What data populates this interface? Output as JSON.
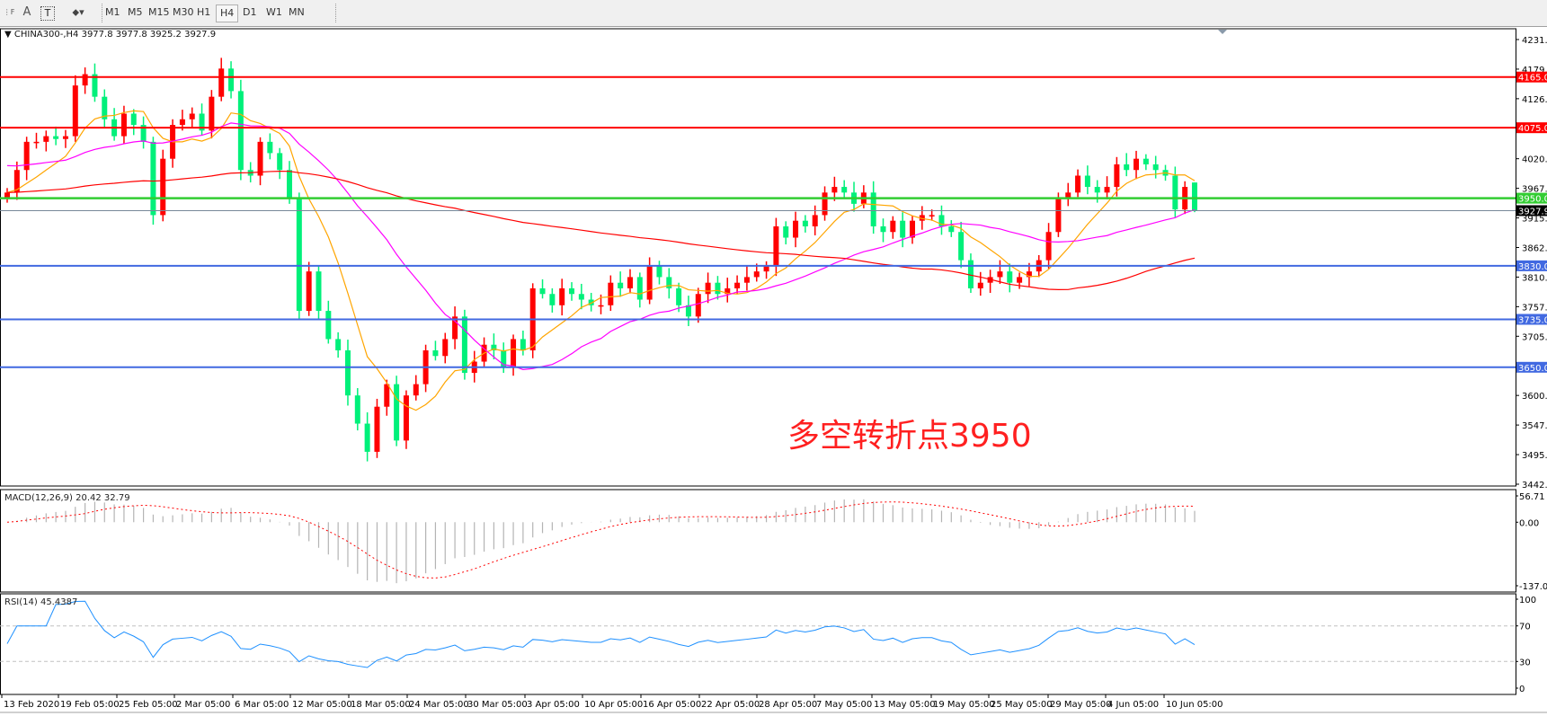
{
  "toolbar": {
    "tools": [
      {
        "name": "properties-icon",
        "glyph": "⋮F"
      },
      {
        "name": "text-icon",
        "glyph": "A"
      },
      {
        "name": "text-label-icon",
        "glyph": "T"
      },
      {
        "name": "shapes-icon",
        "glyph": "⬥▾"
      }
    ],
    "timeframes": [
      "M1",
      "M5",
      "M15",
      "M30",
      "H1",
      "H4",
      "D1",
      "W1",
      "MN"
    ],
    "active_timeframe": "H4"
  },
  "chart": {
    "title": "CHINA300-,H4  3977.8 3977.8 3925.2 3927.9",
    "annotation": "多空转折点3950",
    "colors": {
      "bull": "#ff0000",
      "bear": "#00f07a",
      "ma_fast": "#ffa500",
      "ma_mid": "#ff00ff",
      "ma_slow": "#ff0000",
      "resistance": "#ff0000",
      "pivot": "#32cd32",
      "support": "#4169e1",
      "current": "#778899",
      "rsi": "#1e90ff",
      "macd_hist": "#b4b4b4",
      "macd_signal": "#ff0000"
    }
  },
  "chart_data": [
    {
      "type": "candlestick",
      "symbol": "CHINA300-",
      "timeframe": "H4",
      "ohlc_last": {
        "open": 3977.8,
        "high": 3977.8,
        "low": 3925.2,
        "close": 3927.9
      },
      "closes": [
        3960,
        4000,
        4050,
        4050,
        4060,
        4055,
        4060,
        4150,
        4170,
        4130,
        4090,
        4060,
        4100,
        4080,
        4050,
        3920,
        4020,
        4080,
        4090,
        4100,
        4070,
        4130,
        4180,
        4140,
        4000,
        3990,
        4050,
        4030,
        4000,
        3950,
        3750,
        3820,
        3750,
        3700,
        3680,
        3600,
        3550,
        3500,
        3580,
        3620,
        3520,
        3600,
        3620,
        3680,
        3670,
        3700,
        3740,
        3640,
        3660,
        3690,
        3680,
        3650,
        3700,
        3680,
        3790,
        3780,
        3760,
        3790,
        3780,
        3770,
        3760,
        3760,
        3800,
        3790,
        3810,
        3770,
        3830,
        3810,
        3790,
        3760,
        3740,
        3780,
        3800,
        3780,
        3790,
        3800,
        3810,
        3820,
        3830,
        3900,
        3880,
        3910,
        3900,
        3920,
        3960,
        3970,
        3960,
        3940,
        3960,
        3900,
        3890,
        3910,
        3880,
        3910,
        3920,
        3920,
        3900,
        3890,
        3840,
        3790,
        3800,
        3810,
        3820,
        3800,
        3810,
        3820,
        3840,
        3890,
        3950,
        3960,
        3990,
        3970,
        3960,
        3970,
        4010,
        4000,
        4020,
        4010,
        4000,
        3990,
        3930,
        3970,
        3927.9
      ],
      "y_ticks": [
        "4231.5",
        "4179.0",
        "4126.5",
        "4020.0",
        "3967.5",
        "3915.0",
        "3862.5",
        "3810.0",
        "3757.5",
        "3705.0",
        "3600.0",
        "3547.5",
        "3495.0",
        "3442.5"
      ],
      "ylim": [
        3442.5,
        4231.5
      ],
      "levels": [
        {
          "value": 4165.0,
          "label": "4165.0",
          "kind": "resistance"
        },
        {
          "value": 4075.0,
          "label": "4075.0",
          "kind": "resistance"
        },
        {
          "value": 3950.0,
          "label": "3950.0",
          "kind": "pivot"
        },
        {
          "value": 3927.9,
          "label": "3927.9",
          "kind": "current"
        },
        {
          "value": 3830.0,
          "label": "3830.0",
          "kind": "support"
        },
        {
          "value": 3735.0,
          "label": "3735.0",
          "kind": "support"
        },
        {
          "value": 3650.0,
          "label": "3650.0",
          "kind": "support"
        }
      ],
      "x_labels": [
        "13 Feb 2020",
        "19 Feb 05:00",
        "25 Feb 05:00",
        "2 Mar 05:00",
        "6 Mar 05:00",
        "12 Mar 05:00",
        "18 Mar 05:00",
        "24 Mar 05:00",
        "30 Mar 05:00",
        "3 Apr 05:00",
        "10 Apr 05:00",
        "16 Apr 05:00",
        "22 Apr 05:00",
        "28 Apr 05:00",
        "7 May 05:00",
        "13 May 05:00",
        "19 May 05:00",
        "25 May 05:00",
        "29 May 05:00",
        "4 Jun 05:00",
        "10 Jun 05:00"
      ]
    },
    {
      "type": "macd",
      "label": "MACD(12,26,9) 20.42 32.79",
      "params": [
        12,
        26,
        9
      ],
      "main": 20.42,
      "signal": 32.79,
      "y_ticks": [
        "56.71",
        "0.00",
        "-137.01"
      ],
      "ylim": [
        -137.01,
        56.71
      ]
    },
    {
      "type": "rsi",
      "label": "RSI(14) 45.4387",
      "period": 14,
      "value": 45.4387,
      "y_ticks": [
        "100",
        "70",
        "30",
        "0"
      ],
      "levels": [
        70,
        30
      ],
      "ylim": [
        0,
        100
      ]
    }
  ]
}
